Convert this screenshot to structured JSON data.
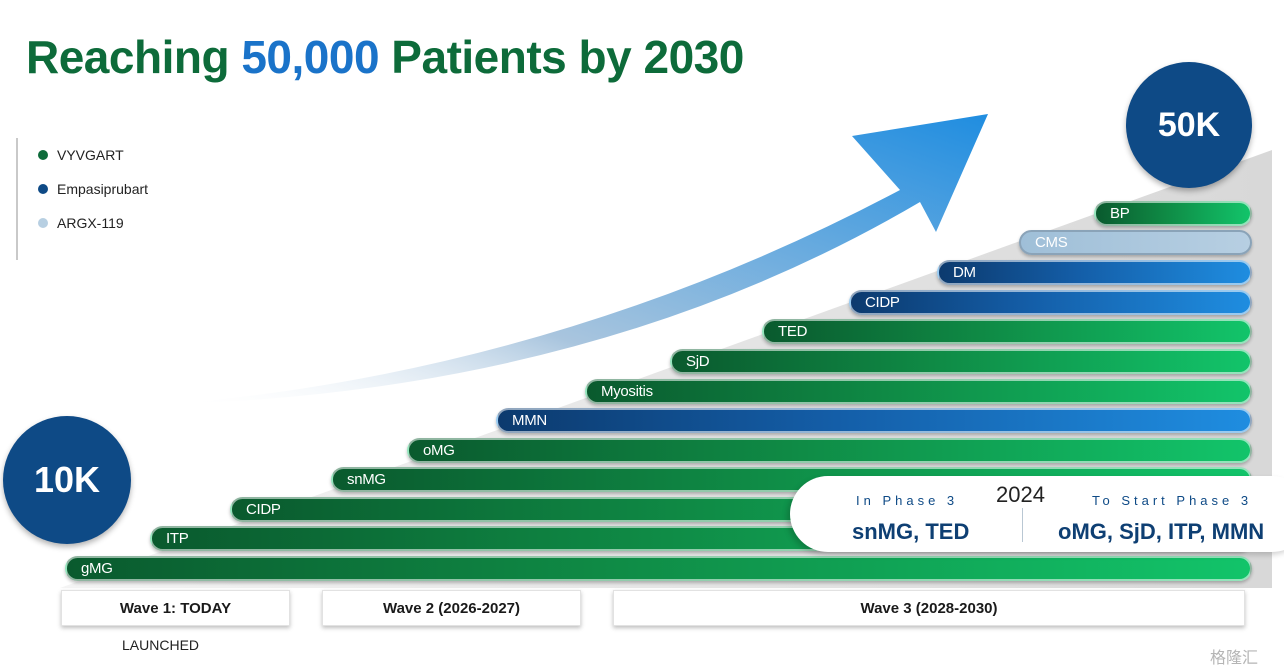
{
  "title": {
    "part1": "Reaching ",
    "highlight": "50,000",
    "part2": " Patients by 2030"
  },
  "legend": [
    {
      "label": "VYVGART",
      "color": "#0d6b3a"
    },
    {
      "label": "Empasiprubart",
      "color": "#0e4a86"
    },
    {
      "label": "ARGX-119",
      "color": "#b7cfe2"
    }
  ],
  "start_badge": "10K",
  "end_badge": "50K",
  "indications": [
    {
      "label": "BP",
      "program": "VYVGART"
    },
    {
      "label": "CMS",
      "program": "ARGX-119"
    },
    {
      "label": "DM",
      "program": "Empasiprubart"
    },
    {
      "label": "CIDP",
      "program": "Empasiprubart"
    },
    {
      "label": "TED",
      "program": "VYVGART"
    },
    {
      "label": "SjD",
      "program": "VYVGART"
    },
    {
      "label": "Myositis",
      "program": "VYVGART"
    },
    {
      "label": "MMN",
      "program": "Empasiprubart"
    },
    {
      "label": "oMG",
      "program": "VYVGART"
    },
    {
      "label": "snMG",
      "program": "VYVGART"
    },
    {
      "label": "CIDP",
      "program": "VYVGART"
    },
    {
      "label": "ITP",
      "program": "VYVGART"
    },
    {
      "label": "gMG",
      "program": "VYVGART"
    }
  ],
  "callout": {
    "year": "2024",
    "phase3_heading": "In Phase 3",
    "phase3_value": "snMG, TED",
    "start_heading": "To Start Phase 3",
    "start_value": "oMG, SjD, ITP, MMN"
  },
  "waves": [
    {
      "label": "Wave 1: TODAY",
      "sublabel": "LAUNCHED"
    },
    {
      "label": "Wave 2 (2026-2027)"
    },
    {
      "label": "Wave 3 (2028-2030)"
    }
  ],
  "watermark": "格隆汇"
}
